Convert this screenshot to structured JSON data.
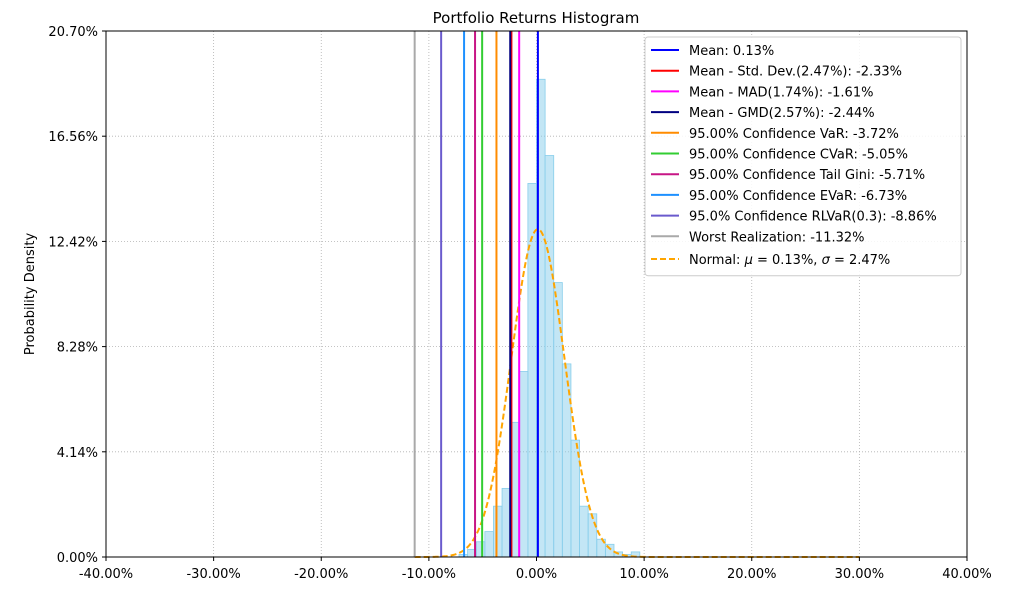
{
  "chart_data": {
    "type": "histogram",
    "title": "Portfolio Returns Histogram",
    "xlabel": "",
    "ylabel": "Probability Density",
    "xlim": [
      -0.4,
      0.4
    ],
    "ylim": [
      0,
      0.207
    ],
    "x_ticks": [
      -0.4,
      -0.3,
      -0.2,
      -0.1,
      0.0,
      0.1,
      0.2,
      0.3,
      0.4
    ],
    "x_tick_labels": [
      "-40.00%",
      "-30.00%",
      "-20.00%",
      "-10.00%",
      "0.00%",
      "10.00%",
      "20.00%",
      "30.00%",
      "40.00%"
    ],
    "y_ticks": [
      0,
      0.0414,
      0.0828,
      0.1242,
      0.1656,
      0.207
    ],
    "y_tick_labels": [
      "0.00%",
      "4.14%",
      "8.28%",
      "12.42%",
      "16.56%",
      "20.70%"
    ],
    "grid": true,
    "legend_position": "top-right",
    "histogram": {
      "color": "#87ceeb",
      "bin_width": 0.008,
      "bins": [
        {
          "x": -0.072,
          "y": 0.001
        },
        {
          "x": -0.064,
          "y": 0.003
        },
        {
          "x": -0.056,
          "y": 0.006
        },
        {
          "x": -0.048,
          "y": 0.01
        },
        {
          "x": -0.04,
          "y": 0.02
        },
        {
          "x": -0.032,
          "y": 0.027
        },
        {
          "x": -0.024,
          "y": 0.053
        },
        {
          "x": -0.016,
          "y": 0.073
        },
        {
          "x": -0.008,
          "y": 0.147
        },
        {
          "x": 0.0,
          "y": 0.188
        },
        {
          "x": 0.008,
          "y": 0.158
        },
        {
          "x": 0.016,
          "y": 0.108
        },
        {
          "x": 0.024,
          "y": 0.076
        },
        {
          "x": 0.032,
          "y": 0.046
        },
        {
          "x": 0.04,
          "y": 0.02
        },
        {
          "x": 0.048,
          "y": 0.017
        },
        {
          "x": 0.056,
          "y": 0.007
        },
        {
          "x": 0.064,
          "y": 0.005
        },
        {
          "x": 0.072,
          "y": 0.002
        },
        {
          "x": 0.08,
          "y": 0.001
        },
        {
          "x": 0.088,
          "y": 0.002
        }
      ]
    },
    "lines": [
      {
        "label": "Mean: 0.13%",
        "x": 0.0013,
        "color": "#0000ff"
      },
      {
        "label": "Mean - Std. Dev.(2.47%): -2.33%",
        "x": -0.0233,
        "color": "#ff0000"
      },
      {
        "label": "Mean - MAD(1.74%): -1.61%",
        "x": -0.0161,
        "color": "#ff00ff"
      },
      {
        "label": "Mean - GMD(2.57%): -2.44%",
        "x": -0.0244,
        "color": "#000080"
      },
      {
        "label": "95.00% Confidence VaR: -3.72%",
        "x": -0.0372,
        "color": "#ff8c00"
      },
      {
        "label": "95.00% Confidence CVaR: -5.05%",
        "x": -0.0505,
        "color": "#32cd32"
      },
      {
        "label": "95.00% Confidence Tail Gini: -5.71%",
        "x": -0.0571,
        "color": "#c71585"
      },
      {
        "label": "95.00% Confidence EVaR: -6.73%",
        "x": -0.0673,
        "color": "#1e90ff"
      },
      {
        "label": "95.0% Confidence RLVaR(0.3): -8.86%",
        "x": -0.0886,
        "color": "#6a5acd"
      },
      {
        "label": "Worst Realization: -11.32%",
        "x": -0.1132,
        "color": "#a9a9a9"
      }
    ],
    "normal_curve": {
      "label": "Normal: μ = 0.13%, σ = 2.47%",
      "label_prefix": "Normal: ",
      "label_mu": "μ",
      "label_mu_value": " = 0.13%, ",
      "label_sigma": "σ",
      "label_sigma_value": " = 2.47%",
      "mu": 0.0013,
      "sigma": 0.0247,
      "x_range": [
        -0.1132,
        0.3
      ],
      "color": "#ffa500",
      "style": "dashed"
    }
  }
}
